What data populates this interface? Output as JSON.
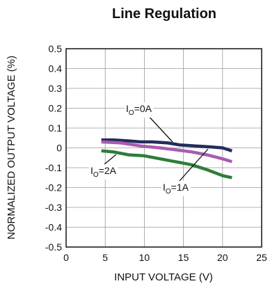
{
  "chart_data": {
    "type": "line",
    "title": "Line Regulation",
    "xlabel": "INPUT VOLTAGE (V)",
    "ylabel": "NORMALIZED OUTPUT VOLTAGE (%)",
    "xlim": [
      0,
      25
    ],
    "ylim": [
      -0.5,
      0.5
    ],
    "xticks": [
      "0",
      "5",
      "10",
      "15",
      "20",
      "25"
    ],
    "yticks": [
      "0.5",
      "0.4",
      "0.3",
      "0.2",
      "0.1",
      "0",
      "-0.1",
      "-0.2",
      "-0.3",
      "-0.4",
      "-0.5"
    ],
    "grid": true,
    "series": [
      {
        "label_main": "I",
        "label_sub": "O",
        "label_rest": "=0A",
        "color": "#242c5c",
        "x": [
          4.5,
          6,
          8,
          9.5,
          11,
          13,
          14.5,
          16.5,
          18.5,
          20,
          21.2
        ],
        "y": [
          0.04,
          0.04,
          0.035,
          0.03,
          0.03,
          0.025,
          0.015,
          0.01,
          0.005,
          0.0,
          -0.015
        ]
      },
      {
        "label_main": "I",
        "label_sub": "O",
        "label_rest": "=1A",
        "color": "#a85cb0",
        "x": [
          4.5,
          7,
          9.5,
          12,
          14,
          16,
          18,
          20,
          21.2
        ],
        "y": [
          0.03,
          0.025,
          0.01,
          0.0,
          -0.01,
          -0.02,
          -0.035,
          -0.055,
          -0.07
        ]
      },
      {
        "label_main": "I",
        "label_sub": "O",
        "label_rest": "=2A",
        "color": "#2e7d3a",
        "x": [
          4.5,
          6,
          8,
          10,
          12,
          14,
          16,
          18,
          20,
          21.2
        ],
        "y": [
          -0.015,
          -0.02,
          -0.035,
          -0.04,
          -0.055,
          -0.07,
          -0.085,
          -0.11,
          -0.14,
          -0.15
        ]
      }
    ]
  }
}
